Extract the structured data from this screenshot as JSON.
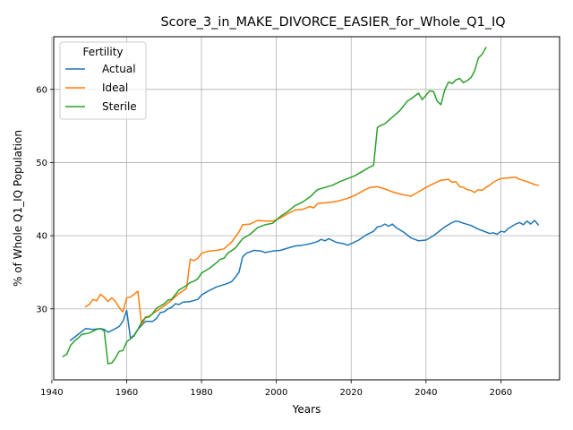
{
  "chart_data": {
    "type": "line",
    "title": "Score_3_in_MAKE_DIVORCE_EASIER_for_Whole_Q1_IQ",
    "xlabel": "Years",
    "ylabel": "% of Whole Q1_IQ Population",
    "xlim": [
      1940.5,
      2075.7
    ],
    "ylim": [
      20.3,
      67.2
    ],
    "xticks": [
      1940,
      1960,
      1980,
      2000,
      2020,
      2040,
      2060
    ],
    "yticks": [
      30,
      40,
      50,
      60
    ],
    "grid": true,
    "legend": {
      "title": "Fertility",
      "position": "top-left"
    },
    "series": [
      {
        "name": "Actual",
        "color": "#1f77b4",
        "points": [
          [
            1945,
            25.7
          ],
          [
            1947,
            26.5
          ],
          [
            1949,
            27.3
          ],
          [
            1951,
            27.2
          ],
          [
            1953,
            27.3
          ],
          [
            1954,
            27.2
          ],
          [
            1955,
            26.8
          ],
          [
            1957,
            27.3
          ],
          [
            1958,
            27.6
          ],
          [
            1959,
            28.3
          ],
          [
            1960,
            29.8
          ],
          [
            1961,
            26.0
          ],
          [
            1962,
            26.4
          ],
          [
            1963,
            27.2
          ],
          [
            1965,
            28.3
          ],
          [
            1967,
            28.3
          ],
          [
            1968,
            28.7
          ],
          [
            1969,
            29.5
          ],
          [
            1970,
            29.6
          ],
          [
            1971,
            30.0
          ],
          [
            1972,
            30.2
          ],
          [
            1973,
            30.7
          ],
          [
            1974,
            30.6
          ],
          [
            1975,
            30.9
          ],
          [
            1977,
            31.0
          ],
          [
            1979,
            31.3
          ],
          [
            1980,
            31.9
          ],
          [
            1982,
            32.5
          ],
          [
            1984,
            33.0
          ],
          [
            1986,
            33.3
          ],
          [
            1988,
            33.7
          ],
          [
            1989,
            34.3
          ],
          [
            1990,
            35.0
          ],
          [
            1991,
            37.1
          ],
          [
            1992,
            37.6
          ],
          [
            1994,
            38.0
          ],
          [
            1996,
            37.9
          ],
          [
            1997,
            37.7
          ],
          [
            1999,
            37.9
          ],
          [
            2001,
            38.0
          ],
          [
            2003,
            38.3
          ],
          [
            2005,
            38.6
          ],
          [
            2007,
            38.7
          ],
          [
            2009,
            38.9
          ],
          [
            2011,
            39.2
          ],
          [
            2012,
            39.5
          ],
          [
            2013,
            39.3
          ],
          [
            2014,
            39.6
          ],
          [
            2016,
            39.1
          ],
          [
            2018,
            38.9
          ],
          [
            2019,
            38.7
          ],
          [
            2020,
            38.9
          ],
          [
            2022,
            39.4
          ],
          [
            2024,
            40.1
          ],
          [
            2026,
            40.6
          ],
          [
            2027,
            41.2
          ],
          [
            2028,
            41.3
          ],
          [
            2029,
            41.6
          ],
          [
            2030,
            41.3
          ],
          [
            2031,
            41.6
          ],
          [
            2032,
            41.1
          ],
          [
            2034,
            40.5
          ],
          [
            2036,
            39.7
          ],
          [
            2038,
            39.3
          ],
          [
            2040,
            39.4
          ],
          [
            2042,
            40.0
          ],
          [
            2044,
            40.8
          ],
          [
            2045,
            41.2
          ],
          [
            2047,
            41.8
          ],
          [
            2048,
            42.0
          ],
          [
            2049,
            41.9
          ],
          [
            2050,
            41.7
          ],
          [
            2052,
            41.4
          ],
          [
            2054,
            40.9
          ],
          [
            2056,
            40.5
          ],
          [
            2057,
            40.3
          ],
          [
            2058,
            40.4
          ],
          [
            2059,
            40.2
          ],
          [
            2060,
            40.6
          ],
          [
            2061,
            40.5
          ],
          [
            2062,
            41.0
          ],
          [
            2063,
            41.3
          ],
          [
            2064,
            41.6
          ],
          [
            2065,
            41.8
          ],
          [
            2066,
            41.5
          ],
          [
            2067,
            42.0
          ],
          [
            2068,
            41.6
          ],
          [
            2069,
            42.1
          ],
          [
            2070,
            41.5
          ]
        ]
      },
      {
        "name": "Ideal",
        "color": "#ff7f0e",
        "points": [
          [
            1949,
            30.3
          ],
          [
            1950,
            30.6
          ],
          [
            1951,
            31.3
          ],
          [
            1952,
            31.1
          ],
          [
            1953,
            32.0
          ],
          [
            1954,
            31.6
          ],
          [
            1955,
            31.0
          ],
          [
            1956,
            31.5
          ],
          [
            1957,
            31.0
          ],
          [
            1958,
            30.2
          ],
          [
            1959,
            29.6
          ],
          [
            1960,
            31.5
          ],
          [
            1961,
            31.6
          ],
          [
            1962,
            32.0
          ],
          [
            1963,
            32.4
          ],
          [
            1964,
            27.8
          ],
          [
            1965,
            28.9
          ],
          [
            1966,
            29.0
          ],
          [
            1968,
            29.7
          ],
          [
            1970,
            30.4
          ],
          [
            1972,
            31.2
          ],
          [
            1974,
            32.1
          ],
          [
            1976,
            32.8
          ],
          [
            1977,
            36.8
          ],
          [
            1978,
            36.6
          ],
          [
            1979,
            36.9
          ],
          [
            1980,
            37.6
          ],
          [
            1982,
            37.9
          ],
          [
            1984,
            38.0
          ],
          [
            1986,
            38.2
          ],
          [
            1988,
            39.1
          ],
          [
            1990,
            40.5
          ],
          [
            1991,
            41.5
          ],
          [
            1993,
            41.6
          ],
          [
            1995,
            42.1
          ],
          [
            1997,
            42.0
          ],
          [
            1999,
            42.0
          ],
          [
            2001,
            42.4
          ],
          [
            2003,
            43.0
          ],
          [
            2005,
            43.5
          ],
          [
            2007,
            43.6
          ],
          [
            2009,
            44.0
          ],
          [
            2010,
            43.8
          ],
          [
            2011,
            44.4
          ],
          [
            2013,
            44.5
          ],
          [
            2015,
            44.6
          ],
          [
            2017,
            44.8
          ],
          [
            2019,
            45.1
          ],
          [
            2021,
            45.5
          ],
          [
            2023,
            46.1
          ],
          [
            2025,
            46.6
          ],
          [
            2027,
            46.7
          ],
          [
            2029,
            46.4
          ],
          [
            2031,
            46.0
          ],
          [
            2033,
            45.7
          ],
          [
            2035,
            45.5
          ],
          [
            2036,
            45.4
          ],
          [
            2038,
            46.0
          ],
          [
            2040,
            46.6
          ],
          [
            2042,
            47.1
          ],
          [
            2044,
            47.6
          ],
          [
            2046,
            47.7
          ],
          [
            2047,
            47.3
          ],
          [
            2048,
            47.4
          ],
          [
            2049,
            46.7
          ],
          [
            2050,
            46.6
          ],
          [
            2051,
            46.3
          ],
          [
            2052,
            46.2
          ],
          [
            2053,
            45.9
          ],
          [
            2054,
            46.3
          ],
          [
            2055,
            46.2
          ],
          [
            2056,
            46.6
          ],
          [
            2057,
            46.9
          ],
          [
            2058,
            47.3
          ],
          [
            2059,
            47.6
          ],
          [
            2060,
            47.8
          ],
          [
            2062,
            47.9
          ],
          [
            2064,
            48.0
          ],
          [
            2065,
            47.7
          ],
          [
            2067,
            47.4
          ],
          [
            2069,
            47.0
          ],
          [
            2070,
            46.9
          ]
        ]
      },
      {
        "name": "Sterile",
        "color": "#2ca02c",
        "points": [
          [
            1943,
            23.5
          ],
          [
            1944,
            23.8
          ],
          [
            1945,
            25.0
          ],
          [
            1946,
            25.6
          ],
          [
            1947,
            26.0
          ],
          [
            1948,
            26.5
          ],
          [
            1950,
            26.7
          ],
          [
            1952,
            27.2
          ],
          [
            1953,
            27.3
          ],
          [
            1954,
            27.0
          ],
          [
            1955,
            22.5
          ],
          [
            1956,
            22.6
          ],
          [
            1957,
            23.3
          ],
          [
            1958,
            24.2
          ],
          [
            1959,
            24.3
          ],
          [
            1960,
            25.5
          ],
          [
            1961,
            25.9
          ],
          [
            1962,
            26.3
          ],
          [
            1963,
            27.2
          ],
          [
            1964,
            28.2
          ],
          [
            1965,
            28.8
          ],
          [
            1966,
            28.9
          ],
          [
            1967,
            29.4
          ],
          [
            1968,
            30.1
          ],
          [
            1970,
            30.7
          ],
          [
            1971,
            31.2
          ],
          [
            1972,
            31.3
          ],
          [
            1974,
            32.6
          ],
          [
            1976,
            33.2
          ],
          [
            1977,
            33.6
          ],
          [
            1978,
            33.8
          ],
          [
            1979,
            34.1
          ],
          [
            1980,
            34.9
          ],
          [
            1982,
            35.5
          ],
          [
            1984,
            36.3
          ],
          [
            1985,
            36.8
          ],
          [
            1986,
            36.9
          ],
          [
            1987,
            37.6
          ],
          [
            1989,
            38.3
          ],
          [
            1991,
            39.6
          ],
          [
            1993,
            40.2
          ],
          [
            1995,
            41.1
          ],
          [
            1997,
            41.5
          ],
          [
            1999,
            41.7
          ],
          [
            2001,
            42.6
          ],
          [
            2003,
            43.3
          ],
          [
            2005,
            44.1
          ],
          [
            2007,
            44.6
          ],
          [
            2009,
            45.3
          ],
          [
            2011,
            46.3
          ],
          [
            2013,
            46.6
          ],
          [
            2015,
            46.9
          ],
          [
            2017,
            47.4
          ],
          [
            2019,
            47.8
          ],
          [
            2021,
            48.2
          ],
          [
            2023,
            48.8
          ],
          [
            2025,
            49.4
          ],
          [
            2026,
            49.6
          ],
          [
            2027,
            54.8
          ],
          [
            2028,
            55.1
          ],
          [
            2029,
            55.3
          ],
          [
            2031,
            56.2
          ],
          [
            2033,
            57.1
          ],
          [
            2035,
            58.4
          ],
          [
            2036,
            58.7
          ],
          [
            2038,
            59.5
          ],
          [
            2039,
            58.6
          ],
          [
            2040,
            59.2
          ],
          [
            2041,
            59.8
          ],
          [
            2042,
            59.7
          ],
          [
            2043,
            58.4
          ],
          [
            2044,
            57.9
          ],
          [
            2045,
            59.9
          ],
          [
            2046,
            61.0
          ],
          [
            2047,
            60.8
          ],
          [
            2048,
            61.3
          ],
          [
            2049,
            61.5
          ],
          [
            2050,
            60.9
          ],
          [
            2051,
            61.2
          ],
          [
            2052,
            61.6
          ],
          [
            2053,
            62.5
          ],
          [
            2054,
            64.3
          ],
          [
            2055,
            64.8
          ],
          [
            2056,
            65.7
          ]
        ]
      }
    ]
  }
}
